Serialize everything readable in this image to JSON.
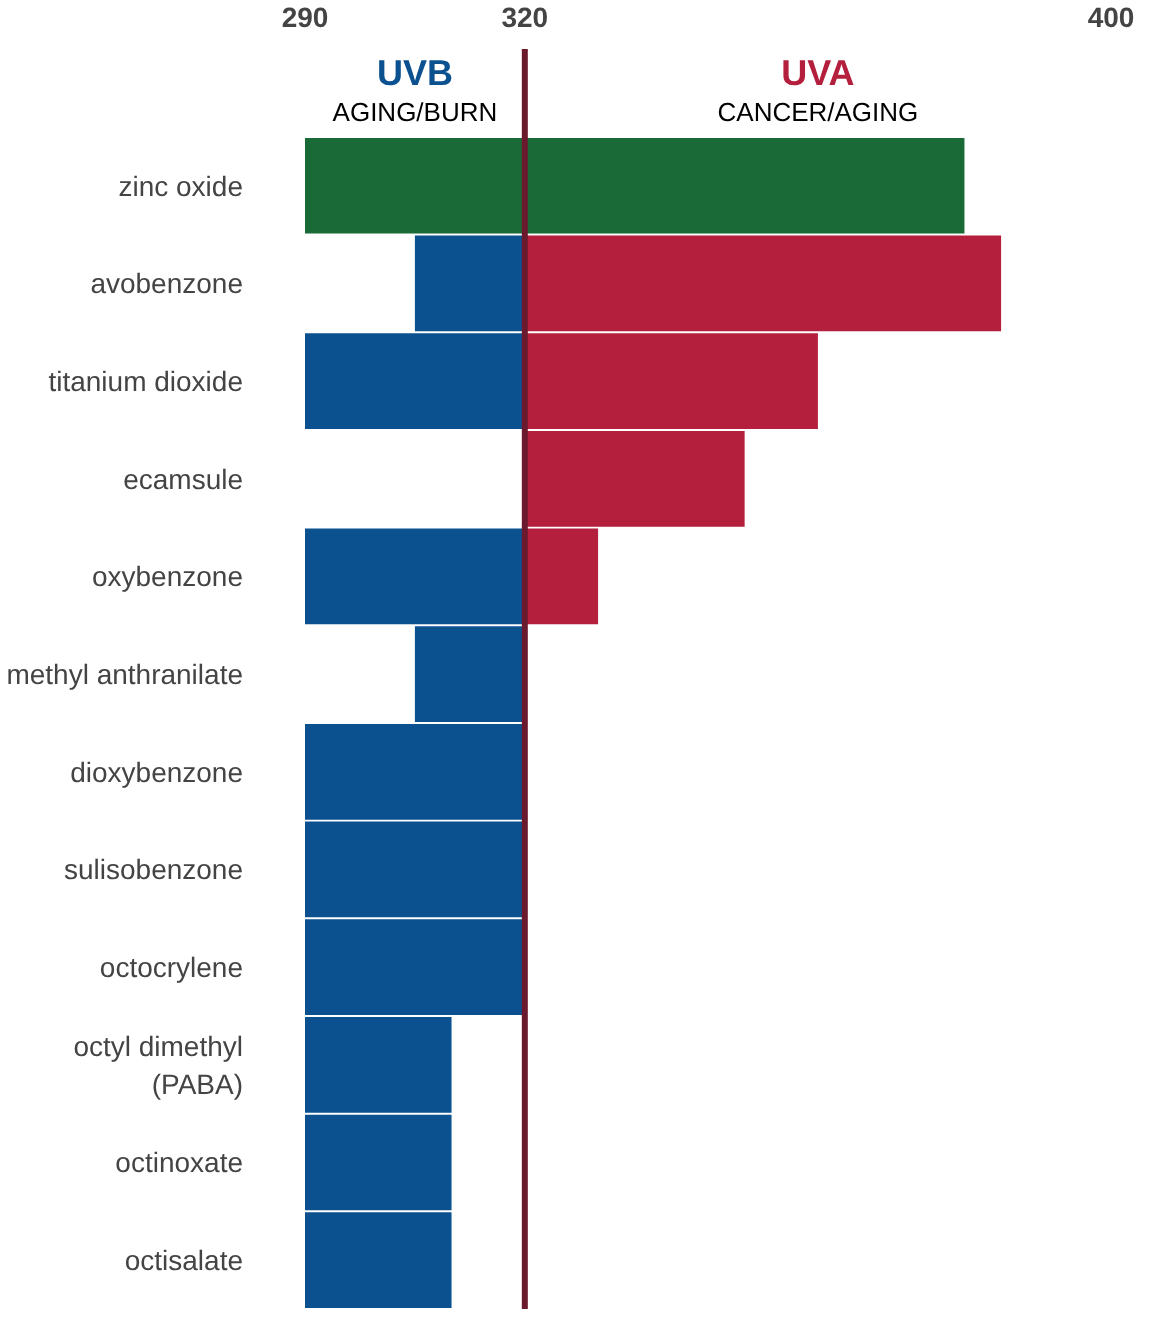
{
  "chart_data": {
    "type": "bar",
    "orientation": "horizontal",
    "categories": [
      "zinc oxide",
      "avobenzone",
      "titanium dioxide",
      "ecamsule",
      "oxybenzone",
      "methyl anthranilate",
      "dioxybenzone",
      "sulisobenzone",
      "octocrylene",
      "octyl dimethyl\n(PABA)",
      "octinoxate",
      "octisalate"
    ],
    "series": [
      {
        "color": "#0b5190",
        "colors": [
          "#1a6a37",
          "#0b5190",
          "#0b5190",
          "#0b5190",
          "#0b5190",
          "#0b5190",
          "#0b5190",
          "#0b5190",
          "#0b5190",
          "#0b5190",
          "#0b5190",
          "#0b5190"
        ],
        "base": [
          290,
          305,
          290,
          null,
          290,
          305,
          290,
          290,
          290,
          290,
          290,
          290
        ],
        "values": [
          30,
          15,
          30,
          null,
          30,
          15,
          30,
          30,
          30,
          20,
          20,
          20
        ]
      },
      {
        "color": "#b41f3d",
        "colors": [
          "#1a6a37",
          "#b41f3d",
          "#b41f3d",
          "#b41f3d",
          "#b41f3d",
          "#b41f3d",
          "#b41f3d",
          "#b41f3d",
          "#b41f3d",
          "#b41f3d",
          "#b41f3d",
          "#b41f3d"
        ],
        "base": [
          320,
          320,
          320,
          320,
          320,
          null,
          null,
          null,
          null,
          null,
          null,
          null
        ],
        "values": [
          60,
          65,
          40,
          30,
          10,
          null,
          null,
          null,
          null,
          null,
          null,
          null
        ]
      }
    ],
    "xlim": [
      290,
      400
    ],
    "xticks": [
      290,
      320,
      400
    ],
    "ref_lines": [
      {
        "axis": "x",
        "value": 320,
        "color": "#6b1a2e"
      }
    ],
    "annotations": [
      "UVB",
      "AGING/BURN",
      "UVA",
      "CANCER/AGING"
    ],
    "grid": false
  }
}
